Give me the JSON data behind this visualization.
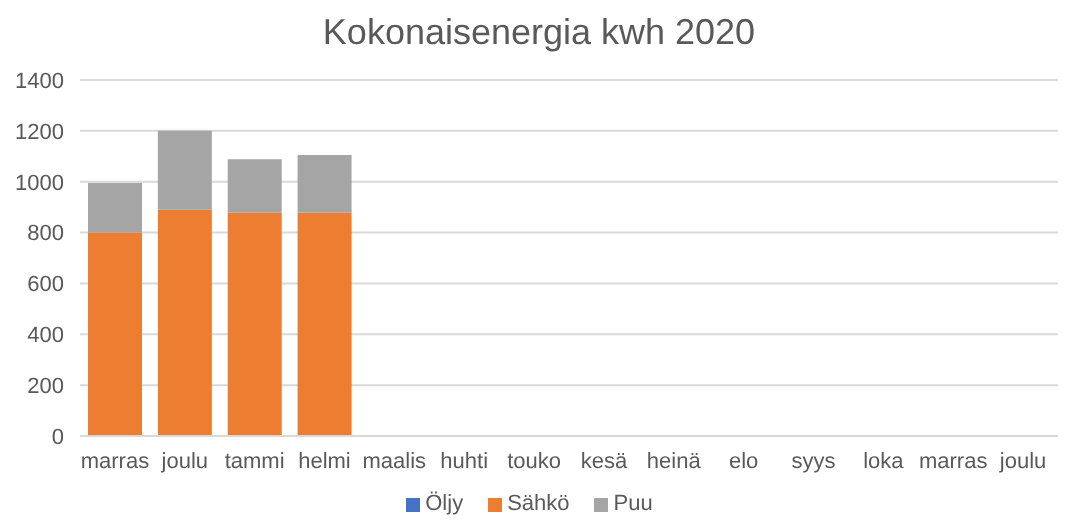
{
  "chart_data": {
    "type": "bar",
    "title": "Kokonaisenergia kwh 2020",
    "stacked": true,
    "categories": [
      "marras",
      "joulu",
      "tammi",
      "helmi",
      "maalis",
      "huhti",
      "touko",
      "kesä",
      "heinä",
      "elo",
      "syys",
      "loka",
      "marras",
      "joulu"
    ],
    "series": [
      {
        "name": "Öljy",
        "color": "#4472c4",
        "values": [
          0,
          0,
          0,
          0,
          null,
          null,
          null,
          null,
          null,
          null,
          null,
          null,
          null,
          null
        ]
      },
      {
        "name": "Sähkö",
        "color": "#ed7d31",
        "values": [
          800,
          890,
          878,
          878,
          null,
          null,
          null,
          null,
          null,
          null,
          null,
          null,
          null,
          null
        ]
      },
      {
        "name": "Puu",
        "color": "#a5a5a5",
        "values": [
          195,
          310,
          210,
          227,
          null,
          null,
          null,
          null,
          null,
          null,
          null,
          null,
          null,
          null
        ]
      }
    ],
    "ylim": [
      0,
      1400
    ],
    "yticks": [
      0,
      200,
      400,
      600,
      800,
      1000,
      1200,
      1400
    ],
    "grid": "y",
    "legend": "bottom"
  }
}
